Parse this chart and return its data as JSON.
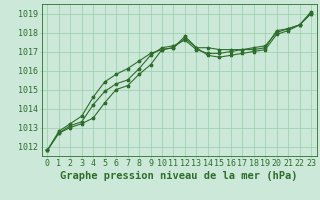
{
  "bg_color": "#cce8d8",
  "grid_color": "#99ccaa",
  "line_color": "#2d6e2d",
  "marker_color": "#2d6e2d",
  "xlabel": "Graphe pression niveau de la mer (hPa)",
  "ylim": [
    1011.5,
    1019.5
  ],
  "xlim": [
    -0.5,
    23.5
  ],
  "yticks": [
    1012,
    1013,
    1014,
    1015,
    1016,
    1017,
    1018,
    1019
  ],
  "xticks": [
    0,
    1,
    2,
    3,
    4,
    5,
    6,
    7,
    8,
    9,
    10,
    11,
    12,
    13,
    14,
    15,
    16,
    17,
    18,
    19,
    20,
    21,
    22,
    23
  ],
  "series1": [
    1011.8,
    1012.7,
    1013.0,
    1013.2,
    1013.5,
    1014.3,
    1015.0,
    1015.2,
    1015.8,
    1016.3,
    1017.1,
    1017.2,
    1017.7,
    1017.2,
    1017.2,
    1017.1,
    1017.1,
    1017.1,
    1017.1,
    1017.2,
    1018.1,
    1018.2,
    1018.4,
    1019.0
  ],
  "series2": [
    1011.8,
    1012.7,
    1013.1,
    1013.3,
    1014.2,
    1014.9,
    1015.3,
    1015.5,
    1016.1,
    1016.8,
    1017.2,
    1017.3,
    1017.6,
    1017.1,
    1016.9,
    1016.9,
    1017.0,
    1017.1,
    1017.2,
    1017.3,
    1018.0,
    1018.2,
    1018.4,
    1019.0
  ],
  "series3": [
    1011.8,
    1012.8,
    1013.2,
    1013.6,
    1014.6,
    1015.4,
    1015.8,
    1016.1,
    1016.5,
    1016.9,
    1017.1,
    1017.2,
    1017.8,
    1017.2,
    1016.8,
    1016.7,
    1016.8,
    1016.9,
    1017.0,
    1017.1,
    1017.9,
    1018.1,
    1018.4,
    1019.1
  ],
  "title_color": "#2d6e2d",
  "xlabel_fontsize": 7.5,
  "tick_fontsize": 6,
  "font_family": "monospace",
  "linewidth": 0.8,
  "markersize": 2.5
}
